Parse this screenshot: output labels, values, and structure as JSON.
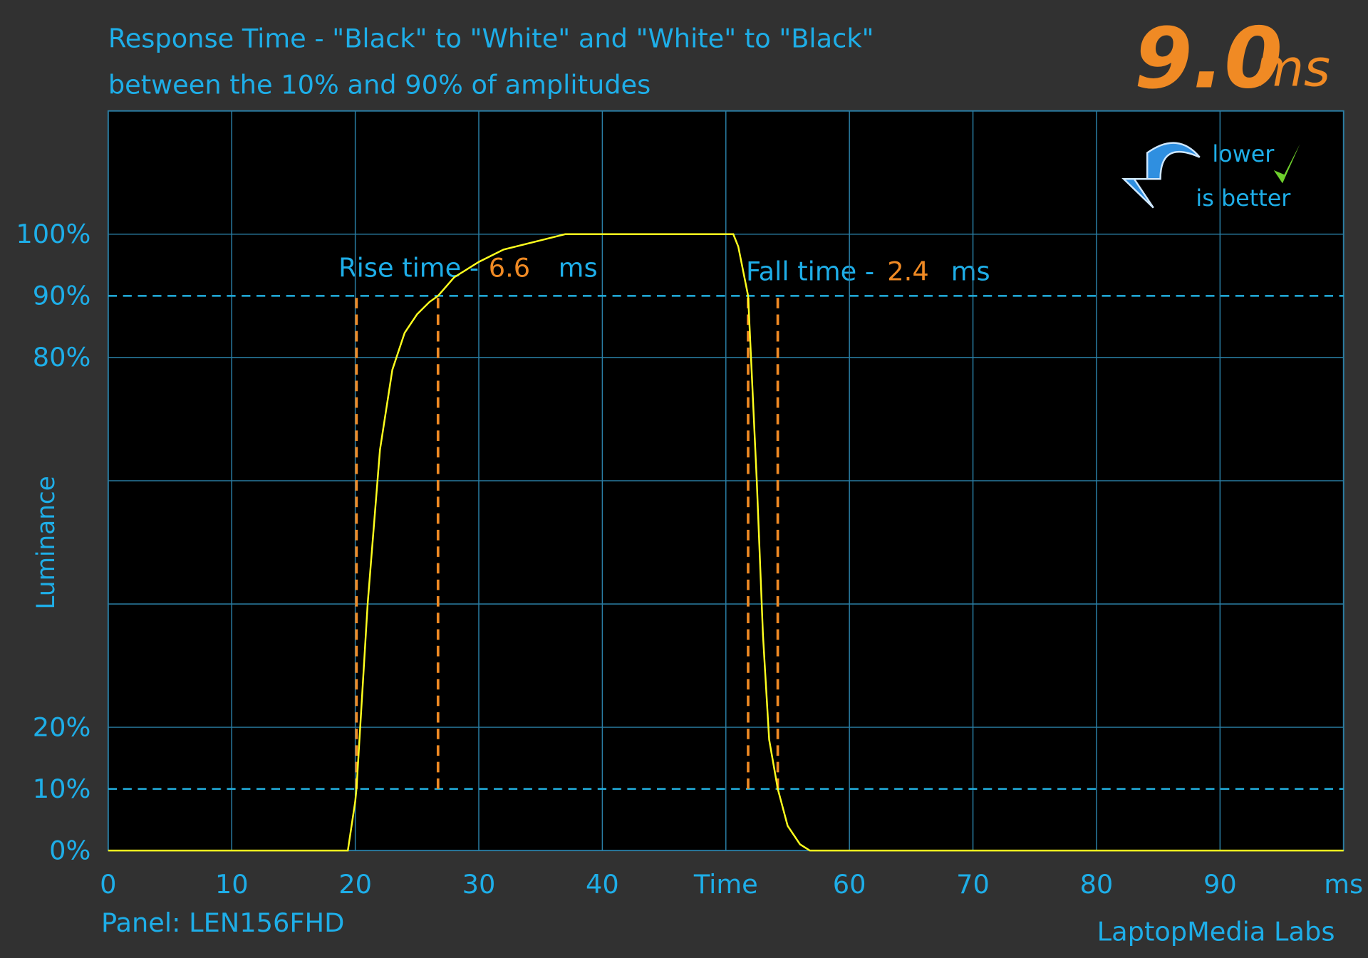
{
  "chart_data": {
    "type": "line",
    "title": "Response Time - \"Black\" to \"White\" and \"White\" to \"Black\"",
    "subtitle": "between the 10% and 90% of amplitudes",
    "result": {
      "value": 9,
      "label": "9.0"
    },
    "result_unit": "ms",
    "badge": [
      "lower",
      "is better"
    ],
    "y_label": "Luminance",
    "panel": "Panel: LEN156FHD",
    "credit": "LaptopMedia Labs",
    "rise_label": "Rise time - ",
    "rise_time": 6.6,
    "fall_label": "Fall time - ",
    "fall_time": 2.4,
    "time_unit": "ms",
    "xlim": [
      0,
      100
    ],
    "ylim": [
      0,
      120
    ],
    "xticks": [
      0,
      10,
      20,
      30,
      40,
      {
        "value": 50,
        "label": "Time"
      },
      60,
      70,
      80,
      90,
      {
        "value": 100,
        "label": "ms"
      }
    ],
    "yticks": [
      {
        "value": 0,
        "label": "0%"
      },
      {
        "value": 10,
        "label": "10%"
      },
      {
        "value": 20,
        "label": "20%"
      },
      {
        "value": 80,
        "label": "80%"
      },
      {
        "value": 90,
        "label": "90%"
      },
      {
        "value": 100,
        "label": "100%"
      }
    ],
    "y_grid": [
      20,
      40,
      60,
      80,
      100
    ],
    "thresholds": [
      10,
      90
    ],
    "rise_markers": [
      20.1,
      26.7
    ],
    "fall_markers": [
      51.8,
      54.2
    ],
    "color": "#ffff1e",
    "x": [
      0,
      19.4,
      20.0,
      20.1,
      21,
      22,
      23,
      24,
      25,
      26,
      26.7,
      28,
      30,
      32,
      35,
      37,
      50,
      50.6,
      51,
      51.8,
      52.5,
      53,
      53.5,
      54.2,
      55,
      56,
      56.8,
      100
    ],
    "values": [
      0,
      0,
      8,
      10,
      40,
      65,
      78,
      84,
      87,
      89,
      90,
      93,
      95.5,
      97.5,
      99,
      100,
      100,
      100,
      98,
      90,
      60,
      35,
      18,
      10,
      4,
      1,
      0,
      0
    ]
  }
}
